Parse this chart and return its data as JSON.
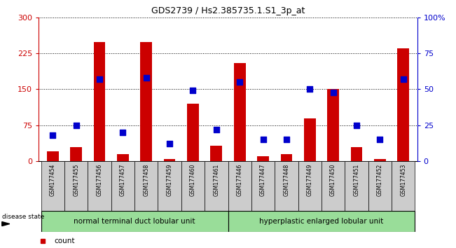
{
  "title": "GDS2739 / Hs2.385735.1.S1_3p_at",
  "samples": [
    "GSM177454",
    "GSM177455",
    "GSM177456",
    "GSM177457",
    "GSM177458",
    "GSM177459",
    "GSM177460",
    "GSM177461",
    "GSM177446",
    "GSM177447",
    "GSM177448",
    "GSM177449",
    "GSM177450",
    "GSM177451",
    "GSM177452",
    "GSM177453"
  ],
  "counts": [
    20,
    30,
    248,
    15,
    249,
    5,
    120,
    32,
    205,
    10,
    15,
    90,
    150,
    30,
    5,
    235
  ],
  "percentiles": [
    18,
    25,
    57,
    20,
    58,
    12,
    49,
    22,
    55,
    15,
    15,
    50,
    48,
    25,
    15,
    57
  ],
  "group1_label": "normal terminal duct lobular unit",
  "group2_label": "hyperplastic enlarged lobular unit",
  "group1_count": 8,
  "group2_count": 8,
  "ylim_left": [
    0,
    300
  ],
  "ylim_right": [
    0,
    100
  ],
  "yticks_left": [
    0,
    75,
    150,
    225,
    300
  ],
  "yticks_right": [
    0,
    25,
    50,
    75,
    100
  ],
  "bar_color": "#cc0000",
  "dot_color": "#0000cc",
  "group_color": "#99dd99",
  "sample_box_color": "#cccccc",
  "bg_color": "#ffffff",
  "tick_label_color_left": "#cc0000",
  "tick_label_color_right": "#0000cc",
  "bar_width": 0.5,
  "dot_size": 30,
  "fig_width": 6.51,
  "fig_height": 3.54
}
